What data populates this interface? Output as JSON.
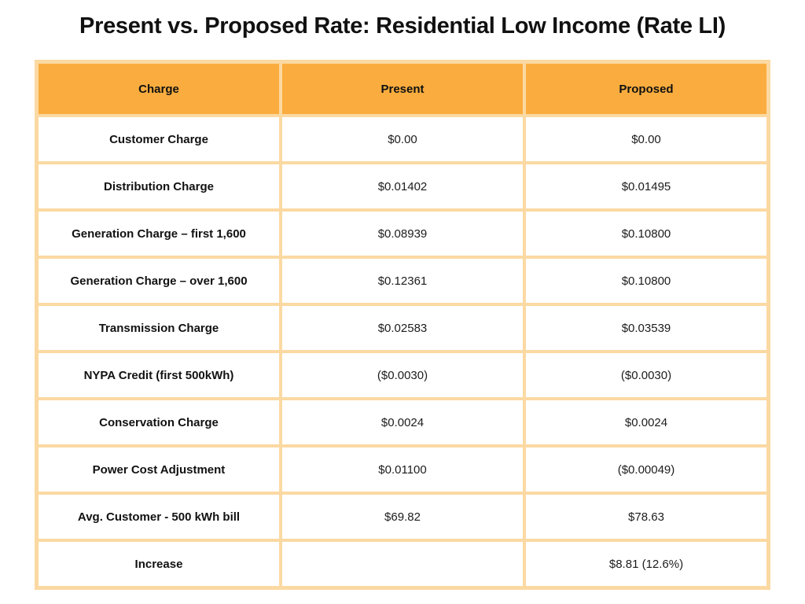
{
  "title": "Present vs. Proposed Rate: Residential Low Income (Rate LI)",
  "chart_data": {
    "type": "table",
    "title": "Present vs. Proposed Rate: Residential Low Income (Rate LI)",
    "columns": [
      "Charge",
      "Present",
      "Proposed"
    ],
    "rows": [
      {
        "charge": "Customer Charge",
        "present": "$0.00",
        "proposed": "$0.00"
      },
      {
        "charge": "Distribution Charge",
        "present": "$0.01402",
        "proposed": "$0.01495"
      },
      {
        "charge": "Generation Charge – first 1,600",
        "present": "$0.08939",
        "proposed": "$0.10800"
      },
      {
        "charge": "Generation Charge – over 1,600",
        "present": "$0.12361",
        "proposed": "$0.10800"
      },
      {
        "charge": "Transmission Charge",
        "present": "$0.02583",
        "proposed": "$0.03539"
      },
      {
        "charge": "NYPA Credit (first 500kWh)",
        "present": "($0.0030)",
        "proposed": "($0.0030)"
      },
      {
        "charge": "Conservation Charge",
        "present": "$0.0024",
        "proposed": "$0.0024"
      },
      {
        "charge": "Power Cost Adjustment",
        "present": "$0.01100",
        "proposed": "($0.00049)"
      },
      {
        "charge": "Avg. Customer - 500 kWh bill",
        "present": "$69.82",
        "proposed": "$78.63"
      },
      {
        "charge": "Increase",
        "present": "",
        "proposed": "$8.81 (12.6%)"
      }
    ]
  },
  "colors": {
    "header_background": "#FAAD3E",
    "table_border": "#FBD9A2",
    "text": "#111111"
  }
}
